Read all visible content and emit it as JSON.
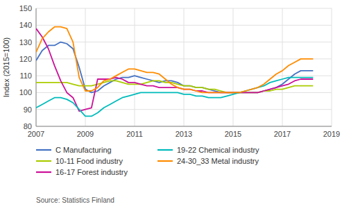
{
  "chart_data": {
    "type": "line",
    "ylabel": "Index (2015=100)",
    "annotations": [
      "Source: Statistics Finland"
    ],
    "xlim": [
      2007,
      2019
    ],
    "ylim": [
      80,
      150
    ],
    "xticks": [
      2007,
      2009,
      2011,
      2013,
      2015,
      2017,
      2019
    ],
    "yticks": [
      80,
      90,
      100,
      110,
      120,
      130,
      140,
      150
    ],
    "grid": true,
    "x": [
      2007,
      2007.25,
      2007.5,
      2007.75,
      2008,
      2008.25,
      2008.5,
      2008.75,
      2009,
      2009.25,
      2009.5,
      2009.75,
      2010,
      2010.25,
      2010.5,
      2010.75,
      2011,
      2011.25,
      2011.5,
      2011.75,
      2012,
      2012.25,
      2012.5,
      2012.75,
      2013,
      2013.25,
      2013.5,
      2013.75,
      2014,
      2014.25,
      2014.5,
      2014.75,
      2015,
      2015.25,
      2015.5,
      2015.75,
      2016,
      2016.25,
      2016.5,
      2016.75,
      2017,
      2017.25,
      2017.5,
      2017.75,
      2018,
      2018.25
    ],
    "series": [
      {
        "name": "C Manufacturing",
        "color": "#4472C4",
        "values": [
          119,
          125,
          128,
          128,
          130,
          129,
          126,
          115,
          102,
          100,
          101,
          104,
          106,
          108,
          109,
          109,
          110,
          109,
          108,
          107,
          106,
          107,
          107,
          106,
          104,
          104,
          103,
          103,
          102,
          101,
          100,
          100,
          100,
          100,
          100,
          100,
          100,
          101,
          102,
          103,
          105,
          108,
          111,
          113,
          113,
          113
        ]
      },
      {
        "name": "10-11 Food industry",
        "color": "#AACC00",
        "values": [
          106,
          106,
          106,
          106,
          106,
          106,
          105,
          104,
          104,
          104,
          105,
          106,
          107,
          107,
          106,
          105,
          105,
          105,
          106,
          107,
          107,
          106,
          106,
          105,
          104,
          104,
          103,
          103,
          102,
          102,
          101,
          100,
          100,
          100,
          100,
          100,
          100,
          101,
          101,
          102,
          102,
          103,
          104,
          104,
          104,
          104
        ]
      },
      {
        "name": "16-17 Forest industry",
        "color": "#CC1199",
        "values": [
          138,
          133,
          126,
          116,
          107,
          100,
          97,
          89,
          90,
          91,
          108,
          108,
          108,
          109,
          108,
          106,
          106,
          105,
          104,
          104,
          103,
          103,
          103,
          103,
          102,
          102,
          101,
          101,
          100,
          100,
          100,
          100,
          100,
          100,
          100,
          100,
          100,
          101,
          102,
          103,
          104,
          105,
          107,
          108,
          108,
          108
        ]
      },
      {
        "name": "19-22 Chemical industry",
        "color": "#00BBBB",
        "values": [
          91,
          93,
          95,
          97,
          97,
          96,
          94,
          90,
          86,
          86,
          88,
          91,
          93,
          95,
          97,
          98,
          99,
          100,
          100,
          100,
          100,
          100,
          100,
          100,
          99,
          99,
          98,
          98,
          97,
          97,
          97,
          98,
          99,
          100,
          101,
          102,
          103,
          104,
          106,
          107,
          108,
          109,
          109,
          109,
          109,
          109
        ]
      },
      {
        "name": "24-30_33 Metal industry",
        "color": "#FF8C00",
        "values": [
          124,
          132,
          136,
          139,
          139,
          138,
          130,
          109,
          101,
          101,
          103,
          107,
          108,
          110,
          112,
          114,
          114,
          113,
          112,
          112,
          111,
          108,
          105,
          103,
          102,
          102,
          101,
          100,
          100,
          100,
          100,
          100,
          100,
          100,
          101,
          102,
          103,
          105,
          108,
          111,
          113,
          116,
          118,
          120,
          120,
          120
        ]
      }
    ]
  }
}
